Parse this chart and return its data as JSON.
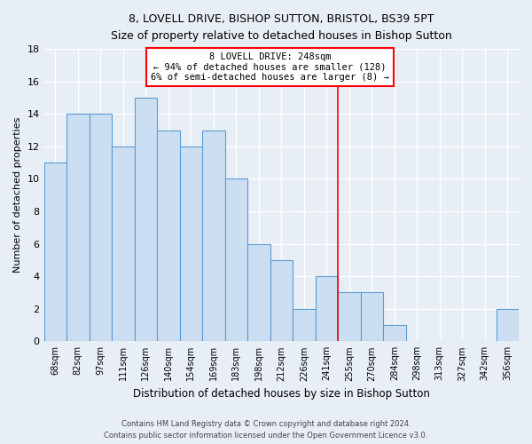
{
  "title_line1": "8, LOVELL DRIVE, BISHOP SUTTON, BRISTOL, BS39 5PT",
  "title_line2": "Size of property relative to detached houses in Bishop Sutton",
  "xlabel": "Distribution of detached houses by size in Bishop Sutton",
  "ylabel": "Number of detached properties",
  "categories": [
    "68sqm",
    "82sqm",
    "97sqm",
    "111sqm",
    "126sqm",
    "140sqm",
    "154sqm",
    "169sqm",
    "183sqm",
    "198sqm",
    "212sqm",
    "226sqm",
    "241sqm",
    "255sqm",
    "270sqm",
    "284sqm",
    "298sqm",
    "313sqm",
    "327sqm",
    "342sqm",
    "356sqm"
  ],
  "values": [
    11,
    14,
    14,
    12,
    15,
    13,
    12,
    13,
    10,
    6,
    5,
    2,
    4,
    3,
    3,
    1,
    0,
    0,
    0,
    0,
    2
  ],
  "bar_color": "#ccdff2",
  "bar_edge_color": "#5b9bd5",
  "background_color": "#e8eef5",
  "grid_color": "#ffffff",
  "red_line_x": 12.5,
  "annotation_title": "8 LOVELL DRIVE: 248sqm",
  "annotation_line1": "← 94% of detached houses are smaller (128)",
  "annotation_line2": "6% of semi-detached houses are larger (8) →",
  "ylim": [
    0,
    18
  ],
  "yticks": [
    0,
    2,
    4,
    6,
    8,
    10,
    12,
    14,
    16,
    18
  ],
  "footer_line1": "Contains HM Land Registry data © Crown copyright and database right 2024.",
  "footer_line2": "Contains public sector information licensed under the Open Government Licence v3.0."
}
